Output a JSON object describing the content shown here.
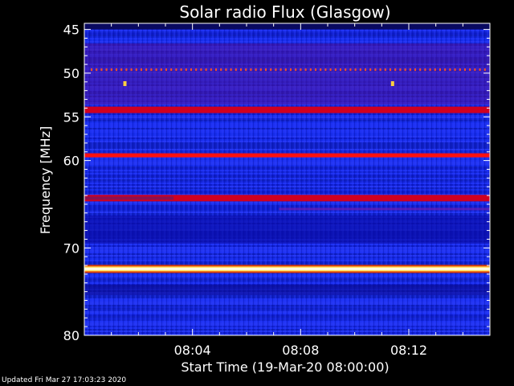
{
  "chart_data": {
    "type": "heatmap",
    "title": "Solar radio Flux (Glasgow)",
    "xlabel": "Start Time (19-Mar-20 08:00:00)",
    "ylabel": "Frequency [MHz]",
    "x_start": "08:00:00",
    "x_end": "08:15:00",
    "x_ticks": [
      "08:04",
      "08:08",
      "08:12"
    ],
    "x_tick_minutes": [
      4,
      8,
      12
    ],
    "x_range_minutes": [
      0,
      15
    ],
    "y_ticks": [
      45,
      50,
      55,
      60,
      70,
      80
    ],
    "y_range": [
      44.3,
      80
    ],
    "colormap": "blue-red-yellow-white",
    "emission_bands": [
      {
        "freq_mhz": 49.6,
        "intensity": "dotted-red"
      },
      {
        "freq_mhz": 54.2,
        "intensity": "red"
      },
      {
        "freq_mhz": 59.4,
        "intensity": "bright-red"
      },
      {
        "freq_mhz": 64.3,
        "intensity": "red"
      },
      {
        "freq_mhz": 72.4,
        "intensity": "saturated-white"
      }
    ],
    "bursts": [
      {
        "minute": 1.5,
        "freq_mhz": 51.2
      },
      {
        "minute": 11.4,
        "freq_mhz": 51.2
      }
    ]
  },
  "footer": {
    "updated": "Updated Fri Mar 27 17:03:23 2020"
  },
  "colors": {
    "background": "#000000",
    "low": "#1020d8",
    "mid": "#3030ff",
    "band": "#e00020",
    "hot": "#fff8c0"
  }
}
